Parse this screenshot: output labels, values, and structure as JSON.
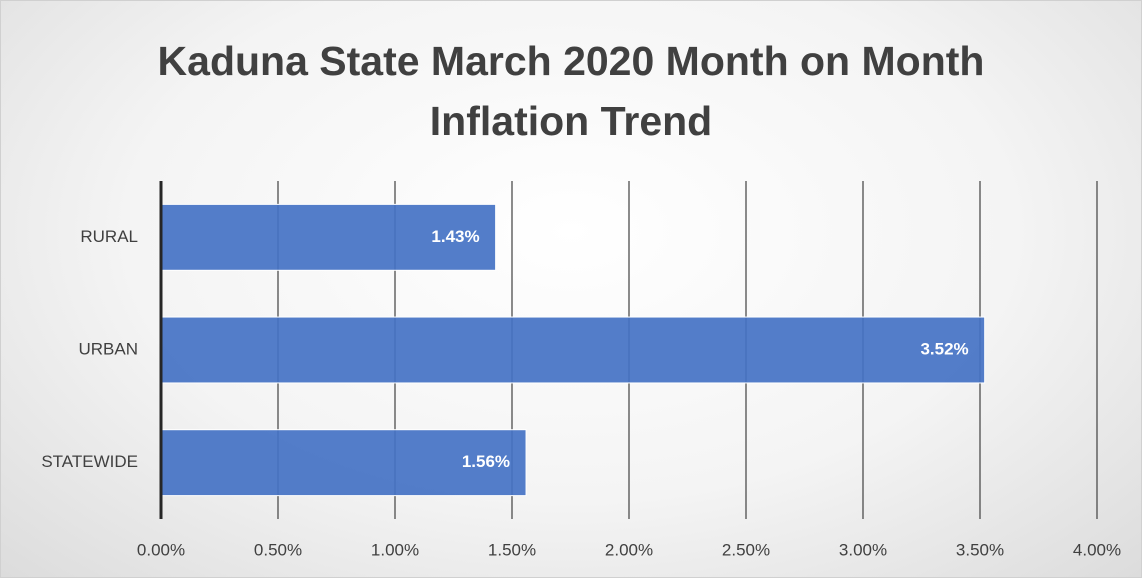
{
  "chart_data": {
    "type": "bar",
    "orientation": "horizontal",
    "title": "Kaduna State March 2020 Month on Month Inflation Trend",
    "categories": [
      "RURAL",
      "URBAN",
      "STATEWIDE"
    ],
    "values": [
      1.43,
      3.52,
      1.56
    ],
    "value_labels": [
      "1.43%",
      "3.52%",
      "1.56%"
    ],
    "color": "#4472c4",
    "xlim": [
      0,
      4
    ],
    "xticks": [
      {
        "value": 0,
        "label": "0.00%"
      },
      {
        "value": 0.5,
        "label": "0.50%"
      },
      {
        "value": 1,
        "label": "1.00%"
      },
      {
        "value": 1.5,
        "label": "1.50%"
      },
      {
        "value": 2,
        "label": "2.00%"
      },
      {
        "value": 2.5,
        "label": "2.50%"
      },
      {
        "value": 3,
        "label": "3.00%"
      },
      {
        "value": 3.5,
        "label": "3.50%"
      },
      {
        "value": 4,
        "label": "4.00%"
      }
    ],
    "grid": true
  }
}
